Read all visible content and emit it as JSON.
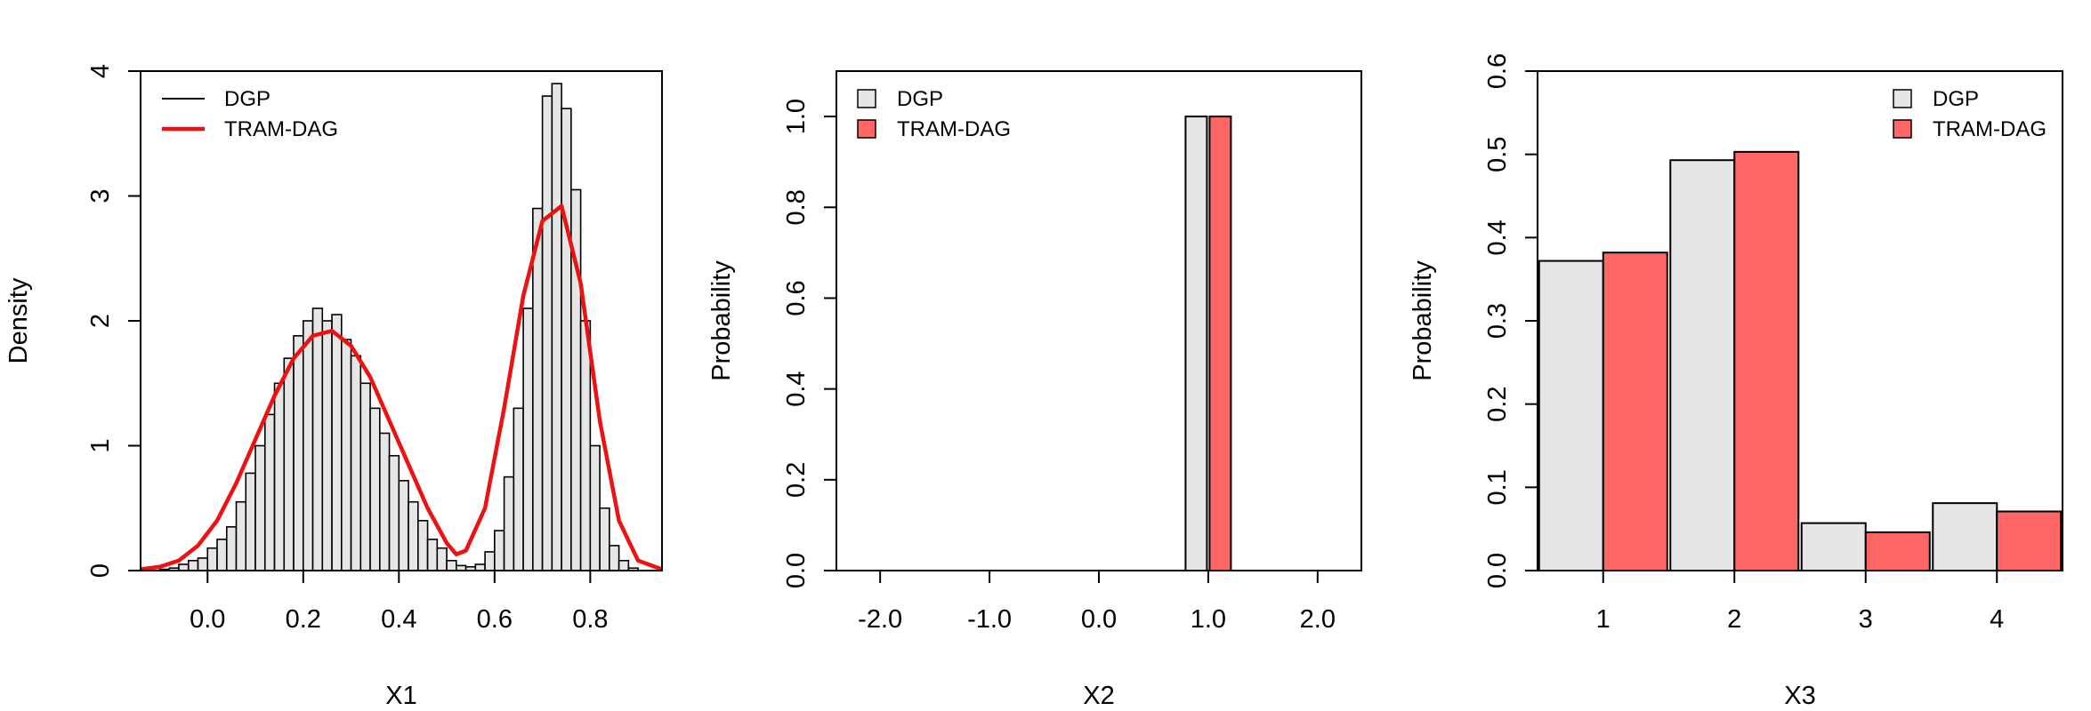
{
  "colors": {
    "dgp_fill": "#e6e6e6",
    "tram_fill": "#ff6666",
    "tram_line": "#ee1111",
    "stroke": "#000000"
  },
  "chart_data": [
    {
      "type": "bar",
      "subtype": "histogram-with-density",
      "xlabel": "X1",
      "ylabel": "Density",
      "xlim": [
        -0.14,
        0.95
      ],
      "ylim": [
        0,
        4
      ],
      "xticks": [
        "0.0",
        "0.2",
        "0.4",
        "0.6",
        "0.8"
      ],
      "yticks": [
        "0",
        "1",
        "2",
        "3",
        "4"
      ],
      "legend": {
        "position": "top-left",
        "entries": [
          {
            "label": "DGP",
            "style": "line-black"
          },
          {
            "label": "TRAM-DAG",
            "style": "line-red"
          }
        ]
      },
      "histogram": {
        "bin_width": 0.02,
        "bin_starts": [
          -0.1,
          -0.08,
          -0.06,
          -0.04,
          -0.02,
          0.0,
          0.02,
          0.04,
          0.06,
          0.08,
          0.1,
          0.12,
          0.14,
          0.16,
          0.18,
          0.2,
          0.22,
          0.24,
          0.26,
          0.28,
          0.3,
          0.32,
          0.34,
          0.36,
          0.38,
          0.4,
          0.42,
          0.44,
          0.46,
          0.48,
          0.5,
          0.52,
          0.54,
          0.56,
          0.58,
          0.6,
          0.62,
          0.64,
          0.66,
          0.68,
          0.7,
          0.72,
          0.74,
          0.76,
          0.78,
          0.8,
          0.82,
          0.84,
          0.86,
          0.88
        ],
        "density": [
          0.01,
          0.02,
          0.05,
          0.08,
          0.1,
          0.18,
          0.25,
          0.35,
          0.55,
          0.78,
          1.0,
          1.25,
          1.5,
          1.7,
          1.88,
          2.0,
          2.1,
          2.0,
          2.05,
          1.85,
          1.72,
          1.5,
          1.3,
          1.1,
          0.92,
          0.72,
          0.55,
          0.4,
          0.25,
          0.18,
          0.08,
          0.04,
          0.03,
          0.05,
          0.15,
          0.32,
          0.75,
          1.3,
          2.1,
          2.9,
          3.8,
          3.9,
          3.7,
          3.05,
          2.0,
          1.0,
          0.5,
          0.2,
          0.08,
          0.02
        ]
      },
      "density_curve": {
        "name": "TRAM-DAG",
        "x": [
          -0.14,
          -0.1,
          -0.06,
          -0.02,
          0.02,
          0.06,
          0.1,
          0.14,
          0.18,
          0.22,
          0.26,
          0.3,
          0.34,
          0.38,
          0.42,
          0.46,
          0.5,
          0.52,
          0.54,
          0.58,
          0.62,
          0.66,
          0.7,
          0.74,
          0.78,
          0.82,
          0.86,
          0.9,
          0.95
        ],
        "y": [
          0.01,
          0.03,
          0.08,
          0.2,
          0.4,
          0.7,
          1.05,
          1.4,
          1.7,
          1.88,
          1.92,
          1.8,
          1.55,
          1.2,
          0.85,
          0.5,
          0.22,
          0.13,
          0.16,
          0.5,
          1.3,
          2.2,
          2.8,
          2.92,
          2.3,
          1.2,
          0.4,
          0.08,
          0.01
        ]
      }
    },
    {
      "type": "bar",
      "xlabel": "X2",
      "ylabel": "Probability",
      "xlim": [
        -2.4,
        2.4
      ],
      "ylim": [
        0,
        1.1
      ],
      "xticks": [
        "-2.0",
        "-1.0",
        "0.0",
        "1.0",
        "2.0"
      ],
      "yticks": [
        "0.0",
        "0.2",
        "0.4",
        "0.6",
        "0.8",
        "1.0"
      ],
      "legend": {
        "position": "top-left",
        "entries": [
          {
            "label": "DGP",
            "style": "box-grey"
          },
          {
            "label": "TRAM-DAG",
            "style": "box-red"
          }
        ]
      },
      "categories": [
        "1.0"
      ],
      "series": [
        {
          "name": "DGP",
          "values": [
            1.0
          ]
        },
        {
          "name": "TRAM-DAG",
          "values": [
            1.0
          ]
        }
      ]
    },
    {
      "type": "bar",
      "xlabel": "X3",
      "ylabel": "Probability",
      "ylim": [
        0,
        0.6
      ],
      "xticks": [
        "1",
        "2",
        "3",
        "4"
      ],
      "yticks": [
        "0.0",
        "0.1",
        "0.2",
        "0.3",
        "0.4",
        "0.5",
        "0.6"
      ],
      "legend": {
        "position": "top-right",
        "entries": [
          {
            "label": "DGP",
            "style": "box-grey"
          },
          {
            "label": "TRAM-DAG",
            "style": "box-red"
          }
        ]
      },
      "categories": [
        "1",
        "2",
        "3",
        "4"
      ],
      "series": [
        {
          "name": "DGP",
          "values": [
            0.372,
            0.493,
            0.057,
            0.081
          ]
        },
        {
          "name": "TRAM-DAG",
          "values": [
            0.382,
            0.503,
            0.046,
            0.071
          ]
        }
      ]
    }
  ]
}
